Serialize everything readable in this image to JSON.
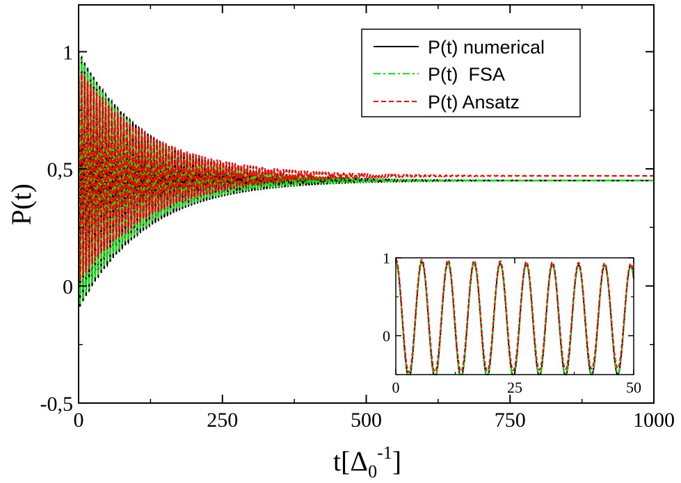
{
  "chart_data": [
    {
      "type": "line",
      "xlabel": "t[Δ",
      "xlabel_sub": "0",
      "xlabel_sup": "-1",
      "xlabel_end": "]",
      "ylabel": "P(t)",
      "xlim": [
        0,
        1000
      ],
      "ylim": [
        -0.5,
        1.2
      ],
      "xticks": [
        0,
        250,
        500,
        750,
        1000
      ],
      "xtick_labels": [
        "0",
        "250",
        "500",
        "750",
        "1000"
      ],
      "yticks": [
        -0.5,
        0,
        0.5,
        1
      ],
      "ytick_labels": [
        "-0,5",
        "0",
        "0,5",
        "1"
      ],
      "grid": false,
      "legend": "top-right",
      "model": {
        "asymptote": 0.45,
        "omega": 1.2,
        "decay_rate": 0.0085,
        "t_max": 1000
      },
      "series": [
        {
          "name": "P(t) numerical",
          "color": "#000000",
          "style": "solid",
          "start": 1.0,
          "amplitude": 0.95,
          "asymptote": 0.45,
          "omega": 1.2,
          "decay": 0.0085
        },
        {
          "name": "P(t)  FSA",
          "color": "#00ee00",
          "style": "dashdot",
          "start": 1.0,
          "amplitude": 0.93,
          "asymptote": 0.45,
          "omega": 1.2,
          "decay": 0.0088
        },
        {
          "name": "P(t) Ansatz",
          "color": "#ff0000",
          "style": "dashed",
          "start": 1.0,
          "amplitude": 0.82,
          "asymptote": 0.47,
          "omega": 1.2,
          "decay": 0.008
        }
      ]
    },
    {
      "type": "line",
      "inset": true,
      "xlim": [
        0,
        50
      ],
      "ylim": [
        -0.5,
        1.0
      ],
      "xticks": [
        0,
        25,
        50
      ],
      "xtick_labels": [
        "0",
        "25",
        "50"
      ],
      "yticks": [
        0,
        1
      ],
      "ytick_labels": [
        "0",
        "1"
      ],
      "series": [
        {
          "name": "P(t) numerical",
          "color": "#000000",
          "style": "solid",
          "asymptote": 0.2,
          "amplitude": 0.75,
          "amp_decay": 0.0015,
          "omega": 1.145
        },
        {
          "name": "P(t)  FSA",
          "color": "#00ee00",
          "style": "dashdot",
          "asymptote": 0.205,
          "amplitude": 0.74,
          "amp_decay": 0.0016,
          "omega": 1.145
        },
        {
          "name": "P(t) Ansatz",
          "color": "#ff0000",
          "style": "dashed",
          "asymptote": 0.255,
          "amplitude": 0.73,
          "amp_decay": 0.0017,
          "omega": 1.145
        }
      ]
    }
  ]
}
